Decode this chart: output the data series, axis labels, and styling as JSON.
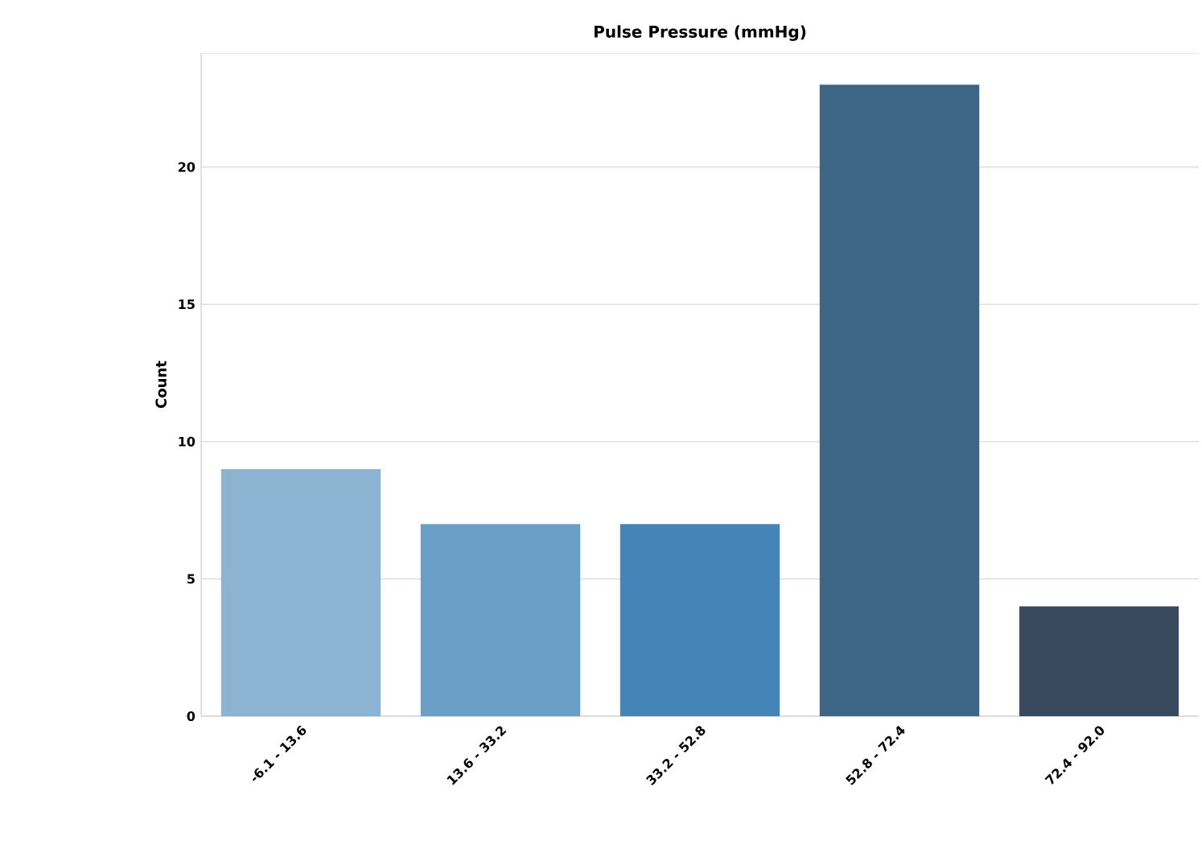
{
  "chart_data": {
    "type": "bar",
    "title": "**Pulse Pressure (mmHg)**",
    "ylabel": "**Count**",
    "categories": [
      "-6.1 - 13.6",
      "13.6 - 33.2",
      "33.2 - 52.8",
      "52.8 - 72.4",
      "72.4 - 92.0"
    ],
    "values": [
      9,
      7,
      7,
      23,
      4
    ],
    "colors": [
      "#8db3d3",
      "#6a9fc8",
      "#4584b6",
      "#3d6586",
      "#3a4a5e"
    ],
    "ylim": [
      0,
      24.15
    ],
    "yticks": [
      0,
      5,
      10,
      15,
      20
    ],
    "grid": "y"
  }
}
